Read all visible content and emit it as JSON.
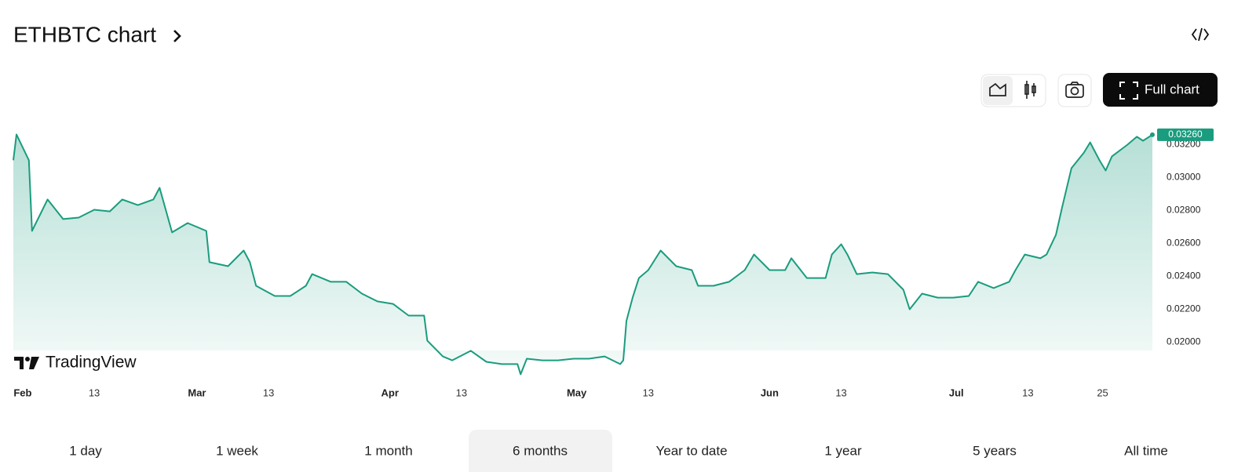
{
  "header": {
    "title": "ETHBTC chart"
  },
  "toolbar": {
    "full_chart": "Full chart"
  },
  "chart_data": {
    "type": "area",
    "watermark": "TradingView",
    "color": "#1a9c7e",
    "x": [
      -1,
      -0.5,
      1.5,
      2,
      4.5,
      7,
      9.5,
      12,
      14.5,
      16.5,
      19,
      21.5,
      22.5,
      24.5,
      27,
      30,
      30.5,
      33.5,
      36,
      37,
      38,
      41,
      43.5,
      46,
      47,
      50,
      52.5,
      55,
      57.5,
      60,
      62.5,
      65,
      65.5,
      68,
      69.5,
      72.5,
      75,
      77.5,
      80,
      80.5,
      81.5,
      84,
      86.5,
      89,
      91.5,
      94,
      96.5,
      97,
      97.5,
      98.5,
      99.5,
      101,
      103,
      105.5,
      108,
      109,
      111.5,
      114,
      116.5,
      118,
      120.5,
      123,
      124,
      126.5,
      129.5,
      130.5,
      132,
      133,
      134.5,
      137,
      139.5,
      142,
      143,
      145,
      147.5,
      150,
      152.5,
      154,
      156.5,
      159,
      160,
      161.5,
      164,
      165,
      166.5,
      167.5,
      169,
      171,
      172,
      173.5,
      174.5,
      175.5,
      178,
      179.5,
      180.5,
      182
    ],
    "values": [
      0.03105,
      0.03262,
      0.03105,
      0.02676,
      0.02867,
      0.02748,
      0.02757,
      0.02805,
      0.02795,
      0.02867,
      0.02833,
      0.02867,
      0.02938,
      0.02667,
      0.02724,
      0.02676,
      0.02486,
      0.02462,
      0.02557,
      0.02486,
      0.02343,
      0.02281,
      0.02281,
      0.02343,
      0.02414,
      0.02367,
      0.02367,
      0.02295,
      0.02248,
      0.02233,
      0.02162,
      0.02162,
      0.0201,
      0.01914,
      0.0189,
      0.01948,
      0.01881,
      0.01867,
      0.01867,
      0.01805,
      0.019,
      0.0189,
      0.0189,
      0.019,
      0.019,
      0.01914,
      0.01867,
      0.0189,
      0.02129,
      0.02271,
      0.0239,
      0.02438,
      0.02557,
      0.02462,
      0.02438,
      0.02343,
      0.02343,
      0.02367,
      0.02438,
      0.02533,
      0.02438,
      0.02438,
      0.0251,
      0.0239,
      0.0239,
      0.02533,
      0.02595,
      0.02533,
      0.02414,
      0.02424,
      0.02414,
      0.02319,
      0.022,
      0.02295,
      0.02271,
      0.02271,
      0.02281,
      0.02367,
      0.02329,
      0.02367,
      0.02438,
      0.02533,
      0.0251,
      0.02533,
      0.02652,
      0.02819,
      0.03057,
      0.03152,
      0.03214,
      0.03105,
      0.03043,
      0.03129,
      0.032,
      0.03248,
      0.03224,
      0.0326
    ],
    "last_value_label": "0.03260",
    "xlim": [
      -1,
      182
    ],
    "xticks": [
      {
        "value": 0,
        "label": "Feb"
      },
      {
        "value": 12,
        "label": "13"
      },
      {
        "value": 28,
        "label": "Mar"
      },
      {
        "value": 40,
        "label": "13"
      },
      {
        "value": 59,
        "label": "Apr"
      },
      {
        "value": 71,
        "label": "13"
      },
      {
        "value": 89,
        "label": "May"
      },
      {
        "value": 101,
        "label": "13"
      },
      {
        "value": 120,
        "label": "Jun"
      },
      {
        "value": 132,
        "label": "13"
      },
      {
        "value": 150,
        "label": "Jul"
      },
      {
        "value": 162,
        "label": "13"
      },
      {
        "value": 174,
        "label": "25"
      }
    ],
    "ylim": [
      0.0195,
      0.0332
    ],
    "yticks": [
      {
        "value": 0.02,
        "label": "0.02000"
      },
      {
        "value": 0.022,
        "label": "0.02200"
      },
      {
        "value": 0.024,
        "label": "0.02400"
      },
      {
        "value": 0.026,
        "label": "0.02600"
      },
      {
        "value": 0.028,
        "label": "0.02800"
      },
      {
        "value": 0.03,
        "label": "0.03000"
      },
      {
        "value": 0.032,
        "label": "0.03200"
      }
    ]
  },
  "ranges": {
    "items": [
      "1 day",
      "1 week",
      "1 month",
      "6 months",
      "Year to date",
      "1 year",
      "5 years",
      "All time"
    ],
    "selected": 3
  }
}
